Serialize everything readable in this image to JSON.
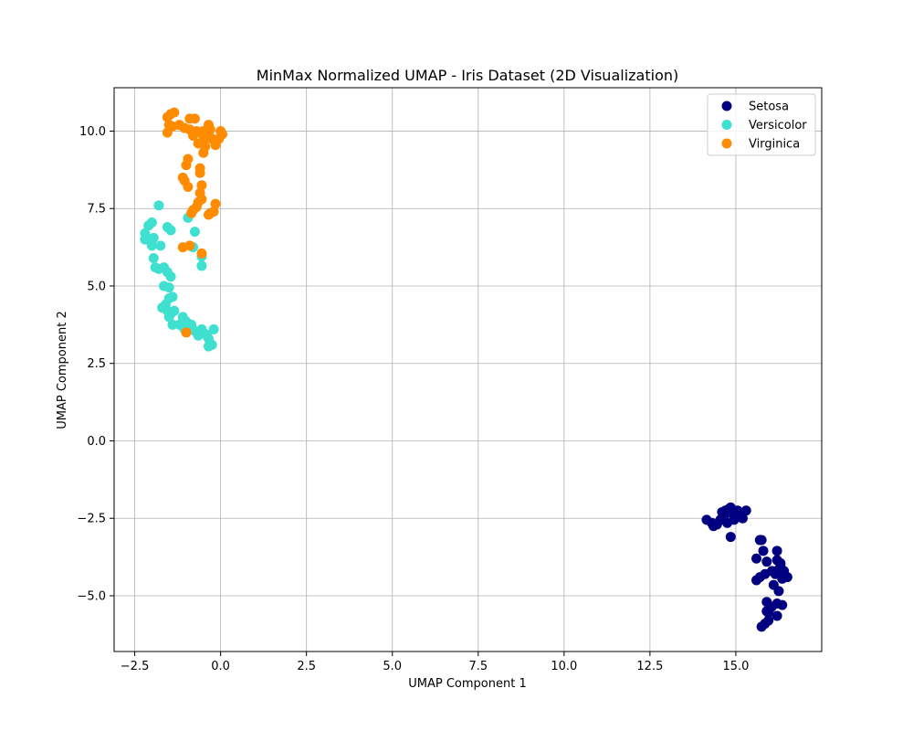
{
  "chart_data": {
    "type": "scatter",
    "title": "MinMax Normalized UMAP - Iris Dataset (2D Visualization)",
    "xlabel": "UMAP Component 1",
    "ylabel": "UMAP Component 2",
    "xlim": [
      -3.1,
      17.5
    ],
    "ylim": [
      -6.8,
      11.4
    ],
    "xticks": [
      -2.5,
      0.0,
      2.5,
      5.0,
      7.5,
      10.0,
      12.5,
      15.0
    ],
    "xtick_labels": [
      "−2.5",
      "0.0",
      "2.5",
      "5.0",
      "7.5",
      "10.0",
      "12.5",
      "15.0"
    ],
    "yticks": [
      -5.0,
      -2.5,
      0.0,
      2.5,
      5.0,
      7.5,
      10.0
    ],
    "ytick_labels": [
      "−5.0",
      "−2.5",
      "0.0",
      "2.5",
      "5.0",
      "7.5",
      "10.0"
    ],
    "grid": true,
    "legend_position": "top-right",
    "series": [
      {
        "name": "Setosa",
        "color": "#000080",
        "points": [
          [
            14.15,
            -2.55
          ],
          [
            14.3,
            -2.65
          ],
          [
            14.35,
            -2.75
          ],
          [
            14.45,
            -2.7
          ],
          [
            14.55,
            -2.55
          ],
          [
            14.6,
            -2.3
          ],
          [
            14.7,
            -2.25
          ],
          [
            14.75,
            -2.65
          ],
          [
            14.8,
            -2.2
          ],
          [
            14.85,
            -2.15
          ],
          [
            14.9,
            -2.35
          ],
          [
            14.95,
            -2.55
          ],
          [
            15.05,
            -2.25
          ],
          [
            15.1,
            -2.45
          ],
          [
            15.2,
            -2.5
          ],
          [
            15.3,
            -2.25
          ],
          [
            14.85,
            -3.1
          ],
          [
            15.7,
            -3.2
          ],
          [
            15.6,
            -3.8
          ],
          [
            15.8,
            -3.55
          ],
          [
            15.9,
            -3.9
          ],
          [
            16.2,
            -3.55
          ],
          [
            16.2,
            -3.85
          ],
          [
            16.3,
            -3.95
          ],
          [
            16.25,
            -4.15
          ],
          [
            16.4,
            -4.2
          ],
          [
            16.5,
            -4.4
          ],
          [
            16.35,
            -4.45
          ],
          [
            16.05,
            -4.2
          ],
          [
            15.85,
            -4.3
          ],
          [
            15.7,
            -4.4
          ],
          [
            15.6,
            -4.5
          ],
          [
            16.1,
            -4.65
          ],
          [
            16.25,
            -4.85
          ],
          [
            15.9,
            -5.2
          ],
          [
            16.0,
            -5.4
          ],
          [
            16.2,
            -5.25
          ],
          [
            16.35,
            -5.3
          ],
          [
            16.05,
            -5.35
          ],
          [
            15.95,
            -5.55
          ],
          [
            16.2,
            -5.65
          ],
          [
            15.95,
            -5.8
          ],
          [
            15.85,
            -5.9
          ],
          [
            15.75,
            -6.0
          ],
          [
            15.9,
            -5.5
          ],
          [
            16.3,
            -4.0
          ],
          [
            16.15,
            -4.3
          ],
          [
            15.75,
            -3.2
          ],
          [
            15.0,
            -2.35
          ],
          [
            14.65,
            -2.45
          ]
        ]
      },
      {
        "name": "Versicolor",
        "color": "#40e0d0",
        "points": [
          [
            -1.8,
            7.6
          ],
          [
            -1.55,
            6.9
          ],
          [
            -1.45,
            6.8
          ],
          [
            -1.75,
            6.3
          ],
          [
            -2.0,
            7.05
          ],
          [
            -2.1,
            6.95
          ],
          [
            -2.2,
            6.7
          ],
          [
            -2.2,
            6.5
          ],
          [
            -2.05,
            6.45
          ],
          [
            -2.0,
            6.3
          ],
          [
            -1.95,
            6.55
          ],
          [
            -1.95,
            5.9
          ],
          [
            -1.9,
            5.6
          ],
          [
            -1.8,
            5.55
          ],
          [
            -1.65,
            5.6
          ],
          [
            -1.55,
            5.45
          ],
          [
            -1.45,
            5.3
          ],
          [
            -1.65,
            5.0
          ],
          [
            -1.5,
            4.95
          ],
          [
            -1.4,
            4.65
          ],
          [
            -1.5,
            4.6
          ],
          [
            -1.6,
            4.4
          ],
          [
            -1.7,
            4.3
          ],
          [
            -1.55,
            4.2
          ],
          [
            -1.45,
            4.1
          ],
          [
            -1.5,
            4.0
          ],
          [
            -1.35,
            4.2
          ],
          [
            -1.4,
            3.75
          ],
          [
            -1.2,
            3.75
          ],
          [
            -1.1,
            4.0
          ],
          [
            -1.0,
            3.85
          ],
          [
            -0.95,
            3.7
          ],
          [
            -1.05,
            3.6
          ],
          [
            -0.85,
            3.75
          ],
          [
            -0.75,
            3.55
          ],
          [
            -0.65,
            3.4
          ],
          [
            -0.55,
            3.6
          ],
          [
            -0.45,
            3.45
          ],
          [
            -0.35,
            3.3
          ],
          [
            -0.3,
            3.15
          ],
          [
            -0.35,
            3.05
          ],
          [
            -0.25,
            3.1
          ],
          [
            -0.2,
            3.6
          ],
          [
            -0.4,
            3.4
          ],
          [
            -0.95,
            7.2
          ],
          [
            -0.75,
            6.75
          ],
          [
            -0.8,
            6.25
          ],
          [
            -0.55,
            5.95
          ],
          [
            -0.55,
            5.65
          ],
          [
            -0.65,
            3.5
          ]
        ]
      },
      {
        "name": "Virginica",
        "color": "#ff8c00",
        "points": [
          [
            -1.55,
            10.45
          ],
          [
            -1.45,
            10.55
          ],
          [
            -1.35,
            10.6
          ],
          [
            -1.5,
            10.2
          ],
          [
            -1.55,
            9.95
          ],
          [
            -1.4,
            10.15
          ],
          [
            -1.2,
            10.2
          ],
          [
            -1.05,
            10.1
          ],
          [
            -0.9,
            10.4
          ],
          [
            -0.75,
            10.4
          ],
          [
            -0.8,
            9.85
          ],
          [
            -0.65,
            9.6
          ],
          [
            -0.6,
            9.95
          ],
          [
            -0.5,
            9.7
          ],
          [
            -0.4,
            9.9
          ],
          [
            -0.35,
            10.2
          ],
          [
            -0.3,
            10.05
          ],
          [
            -0.25,
            9.75
          ],
          [
            -0.15,
            9.55
          ],
          [
            -0.05,
            9.75
          ],
          [
            0.0,
            10.0
          ],
          [
            0.05,
            9.9
          ],
          [
            -0.45,
            9.5
          ],
          [
            -0.5,
            9.3
          ],
          [
            -0.95,
            9.1
          ],
          [
            -1.0,
            8.9
          ],
          [
            -0.6,
            8.8
          ],
          [
            -0.6,
            8.65
          ],
          [
            -1.1,
            8.5
          ],
          [
            -1.05,
            8.4
          ],
          [
            -0.95,
            8.2
          ],
          [
            -0.55,
            8.25
          ],
          [
            -0.6,
            8.0
          ],
          [
            -0.55,
            7.8
          ],
          [
            -0.65,
            7.7
          ],
          [
            -0.7,
            7.55
          ],
          [
            -0.8,
            7.45
          ],
          [
            -0.85,
            7.35
          ],
          [
            -0.3,
            7.35
          ],
          [
            -0.2,
            7.4
          ],
          [
            -0.15,
            7.65
          ],
          [
            -0.35,
            7.3
          ],
          [
            -1.1,
            6.25
          ],
          [
            -0.9,
            6.3
          ],
          [
            -0.55,
            6.05
          ],
          [
            -1.0,
            3.5
          ],
          [
            -0.5,
            10.0
          ],
          [
            -0.7,
            10.0
          ],
          [
            -0.9,
            10.05
          ],
          [
            -0.4,
            10.0
          ]
        ]
      }
    ]
  }
}
